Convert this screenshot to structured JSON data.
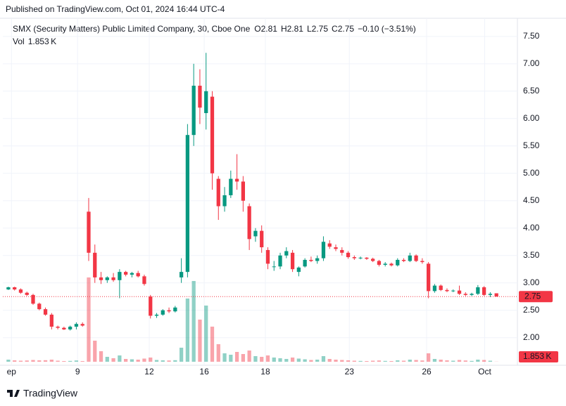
{
  "published": "Published on TradingView.com, Oct 01, 2024 16:44 UTC-4",
  "footer": "TradingView",
  "chart_data": {
    "type": "candlestick",
    "title": "SMX (Security Matters) Public Limited Company, 30, Cboe One",
    "ohlc_letters": [
      "O",
      "H",
      "L",
      "C"
    ],
    "change_label": "−0.10 (−3.51%)",
    "volume_title": "Vol",
    "last_volume_label": "1.853 K",
    "up_color": "#089981",
    "down_color": "#f23645",
    "open": [
      2.88,
      2.92,
      2.88,
      2.82,
      2.78,
      2.62,
      2.52,
      2.42,
      2.2,
      2.18,
      2.15,
      2.2,
      2.25,
      4.3,
      3.55,
      3.1,
      3.05,
      3.1,
      3.05,
      3.2,
      3.15,
      3.18,
      3.12,
      2.75,
      2.4,
      2.42,
      2.5,
      2.48,
      3.1,
      3.2,
      5.7,
      6.6,
      6.1,
      6.4,
      4.9,
      4.4,
      4.6,
      4.9,
      4.85,
      4.4,
      3.85,
      3.95,
      3.6,
      3.3,
      3.3,
      3.5,
      3.55,
      3.2,
      3.3,
      3.42,
      3.4,
      3.45,
      3.72,
      3.65,
      3.6,
      3.55,
      3.47,
      3.45,
      3.46,
      3.44,
      3.4,
      3.33,
      3.35,
      3.32,
      3.42,
      3.4,
      3.5,
      3.4,
      3.35,
      2.85,
      2.95,
      2.87,
      2.85,
      2.86,
      2.8,
      2.78,
      2.8,
      2.92,
      2.78,
      2.81
    ],
    "high": [
      2.93,
      2.93,
      2.9,
      2.84,
      2.8,
      2.64,
      2.55,
      2.45,
      2.22,
      2.2,
      2.22,
      2.28,
      2.28,
      4.55,
      3.7,
      3.2,
      3.12,
      3.18,
      3.25,
      3.22,
      3.2,
      3.22,
      3.15,
      2.78,
      2.45,
      2.52,
      2.55,
      2.58,
      3.45,
      5.9,
      7.0,
      6.9,
      7.2,
      6.5,
      4.95,
      4.75,
      5.05,
      5.35,
      4.95,
      4.45,
      4.0,
      4.05,
      3.65,
      3.4,
      3.55,
      3.65,
      3.6,
      3.3,
      3.45,
      3.48,
      3.5,
      3.85,
      3.78,
      3.7,
      3.65,
      3.58,
      3.5,
      3.48,
      3.47,
      3.46,
      3.42,
      3.38,
      3.37,
      3.45,
      3.45,
      3.55,
      3.52,
      3.45,
      3.38,
      2.98,
      2.97,
      2.9,
      2.88,
      2.95,
      2.83,
      2.82,
      2.96,
      2.94,
      2.83,
      2.81
    ],
    "low": [
      2.87,
      2.86,
      2.8,
      2.76,
      2.6,
      2.5,
      2.4,
      2.15,
      2.15,
      2.14,
      2.13,
      2.15,
      2.2,
      3.4,
      3.0,
      2.98,
      3.0,
      3.02,
      2.72,
      3.12,
      3.1,
      3.1,
      2.95,
      2.35,
      2.36,
      2.4,
      2.45,
      2.46,
      3.0,
      3.1,
      5.5,
      5.9,
      5.8,
      4.7,
      4.15,
      4.3,
      4.55,
      4.7,
      4.3,
      3.6,
      3.75,
      3.55,
      3.25,
      3.22,
      3.25,
      3.45,
      3.2,
      3.12,
      3.28,
      3.38,
      3.35,
      3.4,
      3.62,
      3.58,
      3.5,
      3.44,
      3.42,
      3.43,
      3.42,
      3.38,
      3.3,
      3.3,
      3.3,
      3.3,
      3.38,
      3.38,
      3.38,
      3.35,
      2.72,
      2.82,
      2.85,
      2.83,
      2.83,
      2.78,
      2.76,
      2.76,
      2.78,
      2.76,
      2.74,
      2.75
    ],
    "close": [
      2.92,
      2.88,
      2.82,
      2.78,
      2.62,
      2.52,
      2.42,
      2.2,
      2.18,
      2.15,
      2.2,
      2.25,
      2.22,
      3.55,
      3.1,
      3.05,
      3.1,
      3.05,
      3.2,
      3.15,
      3.18,
      3.12,
      2.98,
      2.4,
      2.42,
      2.5,
      2.48,
      2.55,
      3.2,
      5.7,
      6.6,
      6.2,
      6.5,
      5.0,
      4.4,
      4.6,
      4.9,
      4.85,
      4.5,
      3.8,
      3.95,
      3.65,
      3.35,
      3.3,
      3.5,
      3.58,
      3.25,
      3.28,
      3.42,
      3.4,
      3.45,
      3.75,
      3.66,
      3.62,
      3.55,
      3.47,
      3.45,
      3.46,
      3.44,
      3.4,
      3.33,
      3.35,
      3.32,
      3.42,
      3.4,
      3.5,
      3.4,
      3.38,
      2.85,
      2.95,
      2.87,
      2.85,
      2.86,
      2.8,
      2.78,
      2.8,
      2.92,
      2.78,
      2.8,
      2.75
    ],
    "volume": [
      30000,
      20000,
      15000,
      18000,
      25000,
      20000,
      22000,
      30000,
      15000,
      10000,
      12000,
      18000,
      10000,
      1200000,
      300000,
      150000,
      70000,
      50000,
      90000,
      40000,
      35000,
      30000,
      45000,
      60000,
      25000,
      20000,
      18000,
      22000,
      200000,
      900000,
      1150000,
      600000,
      800000,
      500000,
      250000,
      120000,
      100000,
      140000,
      110000,
      160000,
      80000,
      70000,
      90000,
      60000,
      50000,
      40000,
      60000,
      45000,
      35000,
      25000,
      30000,
      80000,
      40000,
      30000,
      25000,
      20000,
      15000,
      12000,
      10000,
      15000,
      18000,
      12000,
      10000,
      20000,
      15000,
      30000,
      25000,
      18000,
      120000,
      40000,
      30000,
      20000,
      15000,
      25000,
      18000,
      12000,
      30000,
      25000,
      15000,
      1853
    ],
    "xlim": [
      -0.9,
      82.4
    ],
    "xticks": [
      {
        "value": 0.5,
        "label": "ep"
      },
      {
        "value": 11.2,
        "label": "9"
      },
      {
        "value": 22.8,
        "label": "12"
      },
      {
        "value": 31.7,
        "label": "16"
      },
      {
        "value": 41.6,
        "label": "18"
      },
      {
        "value": 55.2,
        "label": "23"
      },
      {
        "value": 67.7,
        "label": "26"
      },
      {
        "value": 77.1,
        "label": "Oct"
      }
    ],
    "ylim": [
      1.56,
      7.78
    ],
    "yticks": [
      {
        "value": 2,
        "label": "2.00"
      },
      {
        "value": 2.5,
        "label": "2.50"
      },
      {
        "value": 3,
        "label": "3.00"
      },
      {
        "value": 3.5,
        "label": "3.50"
      },
      {
        "value": 4,
        "label": "4.00"
      },
      {
        "value": 4.5,
        "label": "4.50"
      },
      {
        "value": 5,
        "label": "5.00"
      },
      {
        "value": 5.5,
        "label": "5.50"
      },
      {
        "value": 6,
        "label": "6.00"
      },
      {
        "value": 6.5,
        "label": "6.50"
      },
      {
        "value": 7,
        "label": "7.00"
      },
      {
        "value": 7.5,
        "label": "7.50"
      }
    ],
    "grid": true
  }
}
